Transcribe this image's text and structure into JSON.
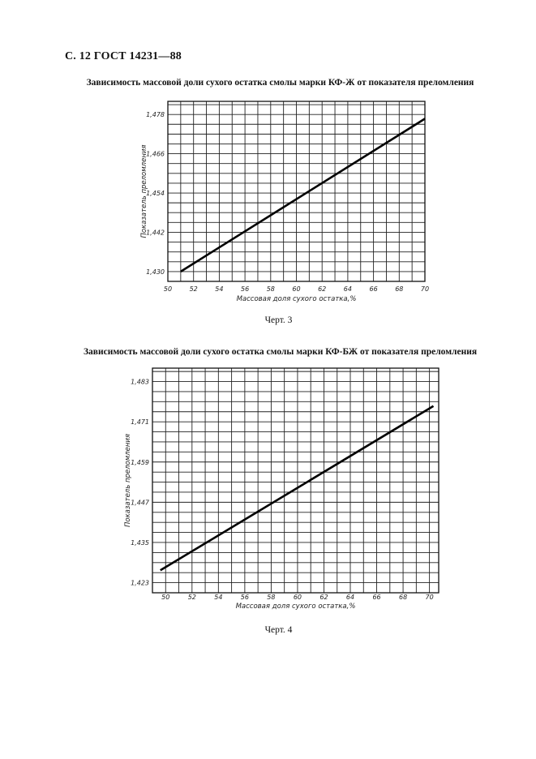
{
  "page": {
    "header": "С. 12 ГОСТ 14231—88"
  },
  "chart_data": [
    {
      "type": "line",
      "title": "Зависимость массовой доли сухого остатка смолы марки КФ-Ж от показателя преломления",
      "caption": "Черт. 3",
      "xlabel": "Массовая доля сухого остатка,%",
      "ylabel": "Показатель преломления",
      "xlim": [
        50,
        70
      ],
      "ylim": [
        1.427,
        1.482
      ],
      "x_ticks": [
        50,
        52,
        54,
        56,
        58,
        60,
        62,
        64,
        66,
        68,
        70
      ],
      "y_ticks": [
        1.43,
        1.442,
        1.454,
        1.466,
        1.478
      ],
      "x_tick_labels": [
        "50",
        "52",
        "54",
        "56",
        "58",
        "60",
        "62",
        "64",
        "66",
        "68",
        "70"
      ],
      "y_tick_labels": [
        "1,430",
        "1,442",
        "1,454",
        "1,466",
        "1,478"
      ],
      "grid": true,
      "series": [
        {
          "x": [
            51.0,
            70.0
          ],
          "y": [
            1.43,
            1.4767
          ]
        }
      ]
    },
    {
      "type": "line",
      "title": "Зависимость массовой доли сухого остатка смолы марки КФ-БЖ от показателя преломления",
      "caption": "Черт. 4",
      "xlabel": "Массовая доля сухого остатка,%",
      "ylabel": "Показатель преломления",
      "xlim": [
        49,
        70.7
      ],
      "ylim": [
        1.42,
        1.487
      ],
      "x_ticks": [
        50,
        52,
        54,
        56,
        58,
        60,
        62,
        64,
        66,
        68,
        70
      ],
      "y_ticks": [
        1.423,
        1.435,
        1.447,
        1.459,
        1.471,
        1.483
      ],
      "x_tick_labels": [
        "50",
        "52",
        "54",
        "56",
        "58",
        "60",
        "62",
        "64",
        "66",
        "68",
        "70"
      ],
      "y_tick_labels": [
        "1,423",
        "1,435",
        "1,447",
        "1,459",
        "1,471",
        "1,483"
      ],
      "grid": true,
      "series": [
        {
          "x": [
            49.6,
            70.3
          ],
          "y": [
            1.4267,
            1.4757
          ]
        }
      ]
    }
  ]
}
